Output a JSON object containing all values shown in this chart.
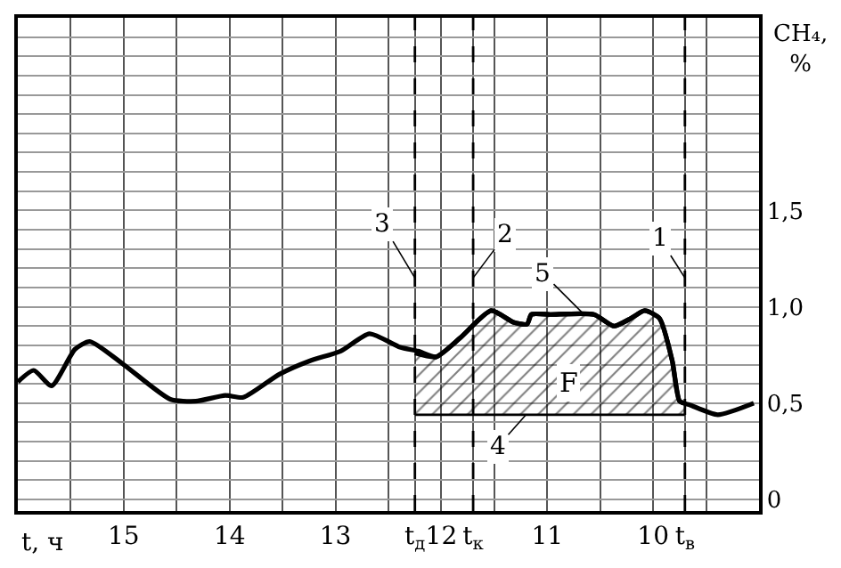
{
  "chart_data": {
    "type": "line",
    "xlabel": "t, ч",
    "ylabel": "CH₄, %",
    "series": [
      {
        "color": "#000000",
        "x": [
          16.0,
          15.85,
          15.68,
          15.46,
          15.32,
          15.0,
          14.56,
          14.32,
          14.04,
          13.87,
          13.53,
          13.24,
          12.95,
          12.68,
          12.39,
          12.22,
          12.05,
          11.82,
          11.53,
          11.32,
          11.19,
          11.15,
          10.97,
          10.56,
          10.37,
          10.21,
          10.08,
          9.94,
          9.82,
          9.75,
          9.65,
          9.39,
          9.05
        ],
        "values": [
          0.61,
          0.67,
          0.59,
          0.78,
          0.82,
          0.7,
          0.52,
          0.51,
          0.54,
          0.53,
          0.65,
          0.72,
          0.77,
          0.86,
          0.79,
          0.77,
          0.74,
          0.84,
          0.98,
          0.92,
          0.91,
          0.96,
          0.96,
          0.96,
          0.9,
          0.94,
          0.98,
          0.94,
          0.72,
          0.51,
          0.49,
          0.44,
          0.5
        ]
      },
      {
        "color": "#000000",
        "x": [
          12.25,
          9.7
        ],
        "values": [
          0.44,
          0.44
        ]
      },
      {
        "type": "area",
        "color": "#000000",
        "x": [
          12.25,
          12.05,
          11.82,
          11.53,
          11.32,
          11.19,
          11.15,
          10.97,
          10.56,
          10.37,
          10.21,
          10.08,
          9.94,
          9.82,
          9.75,
          9.7
        ],
        "values": [
          0.76,
          0.74,
          0.84,
          0.98,
          0.92,
          0.91,
          0.96,
          0.96,
          0.96,
          0.9,
          0.94,
          0.98,
          0.94,
          0.72,
          0.51,
          0.5
        ]
      }
    ],
    "xlim": [
      16.0,
      9.0
    ],
    "xticks": [
      {
        "value": 15.5,
        "label": null
      },
      15,
      {
        "value": 14.5,
        "label": null
      },
      14,
      {
        "value": 13.5,
        "label": null
      },
      13,
      {
        "value": 12.5,
        "label": null
      },
      {
        "value": 12.25,
        "label": "t$_{д}$"
      },
      12,
      {
        "value": 11.7,
        "label": "t$_{к}$"
      },
      {
        "value": 11.5,
        "label": null
      },
      11,
      {
        "value": 10.5,
        "label": null
      },
      10,
      {
        "value": 9.7,
        "label": "t$_{в}$"
      },
      {
        "value": 9.5,
        "label": null
      }
    ],
    "ylim": [
      -0.06,
      2.5
    ],
    "yticks": [
      0,
      {
        "value": 0.1,
        "label": null
      },
      {
        "value": 0.2,
        "label": null
      },
      {
        "value": 0.3,
        "label": null
      },
      {
        "value": 0.4,
        "label": null
      },
      {
        "value": 0.5,
        "label": "0,5"
      },
      {
        "value": 0.6,
        "label": null
      },
      {
        "value": 0.7,
        "label": null
      },
      {
        "value": 0.8,
        "label": null
      },
      {
        "value": 0.9,
        "label": null
      },
      {
        "value": 1.0,
        "label": "1,0"
      },
      {
        "value": 1.1,
        "label": null
      },
      {
        "value": 1.2,
        "label": null
      },
      {
        "value": 1.3,
        "label": null
      },
      {
        "value": 1.4,
        "label": null
      },
      {
        "value": 1.5,
        "label": "1,5"
      },
      {
        "value": 1.6,
        "label": null
      },
      {
        "value": 1.7,
        "label": null
      },
      {
        "value": 1.8,
        "label": null
      },
      {
        "value": 1.9,
        "label": null
      },
      {
        "value": 2.0,
        "label": null
      },
      {
        "value": 2.1,
        "label": null
      },
      {
        "value": 2.2,
        "label": null
      },
      {
        "value": 2.3,
        "label": null
      },
      {
        "value": 2.4,
        "label": null
      }
    ],
    "ref_lines": [
      {
        "axis": "x",
        "value": 9.7,
        "line_style": "dashed",
        "color": "#000000"
      },
      {
        "axis": "x",
        "value": 11.7,
        "line_style": "dashed",
        "color": "#000000"
      },
      {
        "axis": "x",
        "value": 12.25,
        "line_style": "dashed",
        "color": "#000000"
      }
    ],
    "annotations": [
      {
        "text": "1",
        "x": 9.7,
        "y": 1.15
      },
      {
        "text": "2",
        "x": 11.7,
        "y": 1.15
      },
      {
        "text": "3",
        "x": 12.25,
        "y": 1.15
      },
      {
        "text": "5",
        "x": 10.67,
        "y": 0.97
      },
      {
        "text": "4",
        "x": 11.2,
        "y": 0.44
      },
      {
        "text": "F",
        "x": 10.8,
        "y": 0.61
      }
    ],
    "grid": true,
    "marker": "none",
    "line_style": "solid"
  }
}
